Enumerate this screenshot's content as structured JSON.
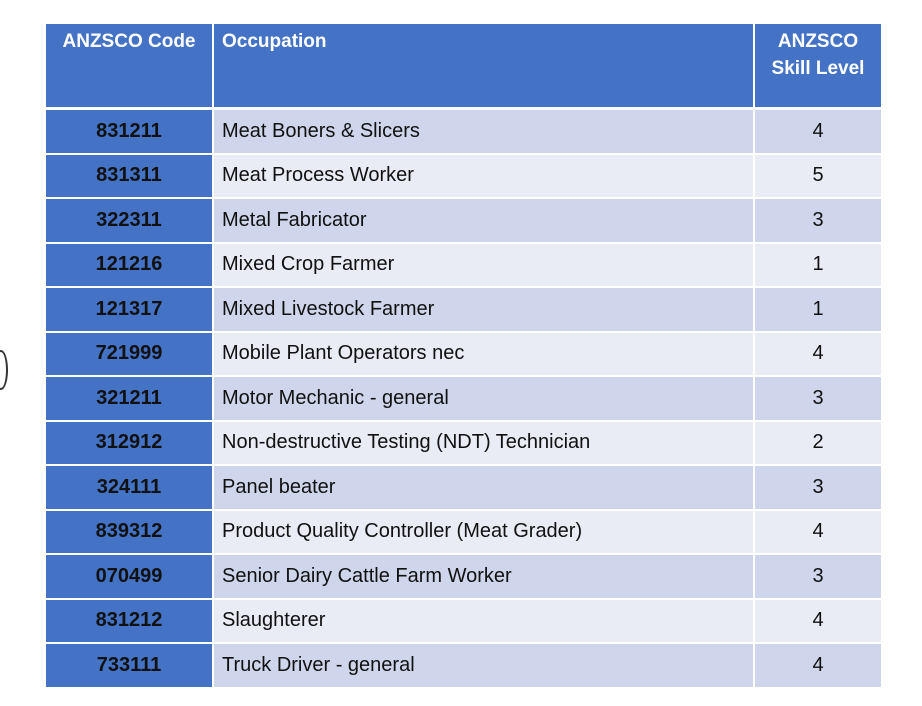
{
  "table": {
    "headers": {
      "code": "ANZSCO Code",
      "occupation": "Occupation",
      "skill_line1": "ANZSCO",
      "skill_line2": "Skill Level"
    },
    "rows": [
      {
        "code": "831211",
        "occupation": "Meat Boners & Slicers",
        "skill": "4"
      },
      {
        "code": "831311",
        "occupation": "Meat Process Worker",
        "skill": "5"
      },
      {
        "code": "322311",
        "occupation": "Metal Fabricator",
        "skill": "3"
      },
      {
        "code": "121216",
        "occupation": "Mixed Crop Farmer",
        "skill": "1"
      },
      {
        "code": "121317",
        "occupation": "Mixed Livestock Farmer",
        "skill": "1"
      },
      {
        "code": "721999",
        "occupation": "Mobile Plant Operators nec",
        "skill": "4"
      },
      {
        "code": "321211",
        "occupation": "Motor Mechanic - general",
        "skill": "3"
      },
      {
        "code": "312912",
        "occupation": "Non-destructive Testing (NDT) Technician",
        "skill": "2"
      },
      {
        "code": "324111",
        "occupation": "Panel beater",
        "skill": "3"
      },
      {
        "code": "839312",
        "occupation": "Product Quality Controller (Meat Grader)",
        "skill": "4"
      },
      {
        "code": "070499",
        "occupation": "Senior Dairy Cattle Farm Worker",
        "skill": "3"
      },
      {
        "code": "831212",
        "occupation": "Slaughterer",
        "skill": "4"
      },
      {
        "code": "733111",
        "occupation": "Truck Driver - general",
        "skill": "4"
      }
    ]
  },
  "colors": {
    "header_blue": "#4472c4",
    "row_dark": "#cfd5ea",
    "row_light": "#e9ebf5"
  }
}
